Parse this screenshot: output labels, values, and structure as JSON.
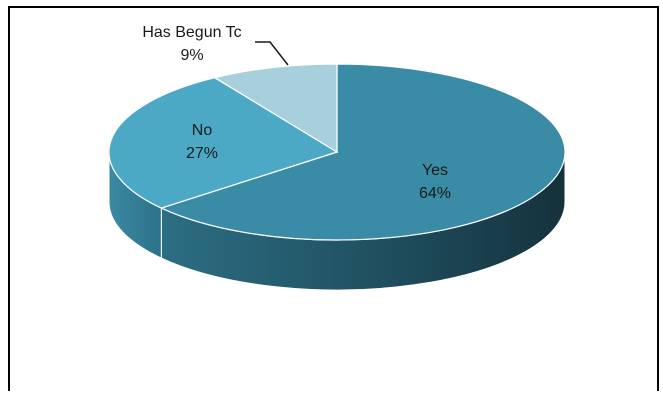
{
  "chart_data": {
    "type": "pie",
    "style": "3d",
    "title": "",
    "legend": "none",
    "slices": [
      {
        "label": "Yes",
        "value": 64,
        "value_label": "64%",
        "color": "#3a8ba5"
      },
      {
        "label": "No",
        "value": 27,
        "value_label": "27%",
        "color": "#4ba9c6"
      },
      {
        "label": "Has Begun To",
        "value": 9,
        "value_label": "9%",
        "color": "#a7cfdc"
      }
    ],
    "labels": [
      {
        "name": "Yes",
        "pct": "64%"
      },
      {
        "name": "No",
        "pct": "27%"
      },
      {
        "name": "Has Begun Tc",
        "pct": "9%"
      }
    ]
  }
}
